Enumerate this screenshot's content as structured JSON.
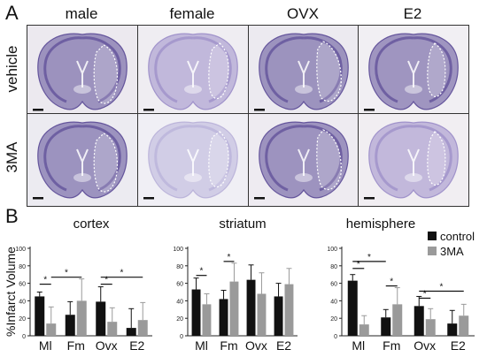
{
  "panel_a": {
    "letter": "A",
    "columns": [
      "male",
      "female",
      "OVX",
      "E2"
    ],
    "rows": [
      "vehicle",
      "3MA"
    ],
    "colors": {
      "stain_dark": "#5b4a96",
      "stain_light": "#9a8cc8",
      "stain_pale": "#b8b0d8",
      "lesion_outline": "#ffffff"
    }
  },
  "panel_b": {
    "letter": "B",
    "y_axis_label": "%Infarct Volume",
    "legend": [
      {
        "label": "control",
        "color": "#111111"
      },
      {
        "label": "3MA",
        "color": "#9a9a9a"
      }
    ]
  },
  "chart_data": [
    {
      "type": "bar",
      "title": "cortex",
      "categories": [
        "Ml",
        "Fm",
        "Ovx",
        "E2"
      ],
      "series": [
        {
          "name": "control",
          "values": [
            45,
            24,
            39,
            9
          ],
          "errors": [
            5,
            15,
            17,
            22
          ]
        },
        {
          "name": "3MA",
          "values": [
            14,
            40,
            16,
            18
          ],
          "errors": [
            19,
            25,
            16,
            20
          ]
        }
      ],
      "ylim": [
        0,
        100
      ],
      "yticks": [
        0,
        20,
        40,
        60,
        80,
        100
      ],
      "significance": [
        {
          "label": "*",
          "from": "Ml-control",
          "to": "Ml-3MA",
          "level": 59
        },
        {
          "label": "*",
          "from": "Ml-3MA",
          "to": "Fm-3MA",
          "level": 67
        },
        {
          "label": "*",
          "from": "Ovx-control",
          "to": "Ovx-3MA",
          "level": 59
        },
        {
          "label": "*",
          "from": "Ovx-control",
          "to": "E2-3MA",
          "level": 67
        }
      ]
    },
    {
      "type": "bar",
      "title": "striatum",
      "categories": [
        "Ml",
        "Fm",
        "Ovx",
        "E2"
      ],
      "series": [
        {
          "name": "control",
          "values": [
            53,
            42,
            64,
            45
          ],
          "errors": [
            13,
            10,
            17,
            15
          ]
        },
        {
          "name": "3MA",
          "values": [
            36,
            62,
            48,
            59
          ],
          "errors": [
            12,
            21,
            24,
            18
          ]
        }
      ],
      "ylim": [
        0,
        100
      ],
      "yticks": [
        0,
        20,
        40,
        60,
        80,
        100
      ],
      "significance": [
        {
          "label": "*",
          "from": "Ml-control",
          "to": "Ml-3MA",
          "level": 69
        },
        {
          "label": "*",
          "from": "Fm-control",
          "to": "Fm-3MA",
          "level": 85
        }
      ]
    },
    {
      "type": "bar",
      "title": "hemisphere",
      "categories": [
        "Ml",
        "Fm",
        "Ovx",
        "E2"
      ],
      "series": [
        {
          "name": "control",
          "values": [
            63,
            21,
            34,
            14
          ],
          "errors": [
            7,
            9,
            11,
            15
          ]
        },
        {
          "name": "3MA",
          "values": [
            13,
            36,
            19,
            23
          ],
          "errors": [
            10,
            19,
            12,
            13
          ]
        }
      ],
      "ylim": [
        0,
        100
      ],
      "yticks": [
        0,
        20,
        40,
        60,
        80,
        100
      ],
      "significance": [
        {
          "label": "*",
          "from": "Ml-control",
          "to": "Ml-3MA",
          "level": 77
        },
        {
          "label": "*",
          "from": "Ml-control",
          "to": "Fm-control",
          "level": 85
        },
        {
          "label": "*",
          "from": "Fm-control",
          "to": "Fm-3MA",
          "level": 57
        },
        {
          "label": "*",
          "from": "Ovx-control",
          "to": "Ovx-3MA",
          "level": 43
        },
        {
          "label": "*",
          "from": "Ovx-control",
          "to": "E2-3MA",
          "level": 51
        }
      ]
    }
  ]
}
